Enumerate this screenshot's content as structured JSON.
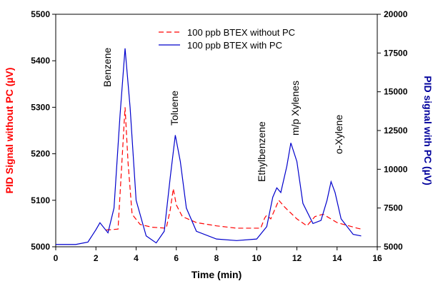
{
  "chart_data": {
    "type": "line",
    "xlabel": "Time (min)",
    "ylabel": "PID Signal without PC (µV)",
    "y2label": "PID signal with PC (µV)",
    "xlim": [
      0,
      16
    ],
    "xticks": [
      0,
      2,
      4,
      6,
      8,
      10,
      12,
      14,
      16
    ],
    "ylim": [
      5000,
      5500
    ],
    "yticks": [
      5000,
      5100,
      5200,
      5300,
      5400,
      5500
    ],
    "y2lim": [
      5000,
      20000
    ],
    "y2ticks": [
      5000,
      7500,
      10000,
      12500,
      15000,
      17500,
      20000
    ],
    "ylabel_color": "#ff0000",
    "y2label_color": "#00009c",
    "series": [
      {
        "name": "100 ppb BTEX without PC",
        "color": "#ff0000",
        "dash": true,
        "axis": "y",
        "x": [
          2.5,
          3.1,
          3.25,
          3.45,
          3.6,
          3.8,
          4.2,
          4.8,
          5.5,
          5.7,
          5.85,
          6.0,
          6.3,
          7.0,
          8.0,
          9.0,
          10.2,
          10.4,
          10.5,
          10.7,
          10.9,
          11.1,
          11.4,
          12.0,
          12.5,
          12.9,
          13.3,
          14.0,
          15.0,
          15.2
        ],
        "values": [
          5036,
          5038,
          5150,
          5300,
          5180,
          5070,
          5048,
          5042,
          5040,
          5080,
          5125,
          5090,
          5065,
          5052,
          5045,
          5040,
          5040,
          5062,
          5068,
          5060,
          5080,
          5100,
          5085,
          5060,
          5045,
          5065,
          5070,
          5052,
          5040,
          5038
        ]
      },
      {
        "name": "100 ppb BTEX with PC",
        "color": "#0000cc",
        "dash": false,
        "axis": "y2",
        "x": [
          0,
          1.0,
          1.6,
          2.0,
          2.2,
          2.6,
          2.9,
          3.2,
          3.45,
          3.7,
          4.0,
          4.5,
          5.0,
          5.4,
          5.7,
          5.95,
          6.2,
          6.5,
          7.0,
          8.0,
          9.0,
          10.0,
          10.5,
          10.8,
          11.0,
          11.2,
          11.5,
          11.7,
          12.0,
          12.3,
          12.8,
          13.2,
          13.5,
          13.7,
          13.9,
          14.2,
          14.8,
          15.2
        ],
        "values": [
          5150,
          5150,
          5300,
          6100,
          6550,
          5900,
          7500,
          13500,
          17800,
          14000,
          8000,
          5700,
          5250,
          6000,
          9500,
          12200,
          10500,
          7500,
          6000,
          5500,
          5400,
          5500,
          6300,
          8200,
          8800,
          8500,
          10200,
          11700,
          10500,
          7800,
          6500,
          6700,
          8000,
          9200,
          8500,
          6800,
          5800,
          5700
        ]
      }
    ],
    "annotations": [
      "Benzene",
      "Toluene",
      "Ethylbenzene",
      "m/p Xylenes",
      "o-Xylene"
    ]
  }
}
